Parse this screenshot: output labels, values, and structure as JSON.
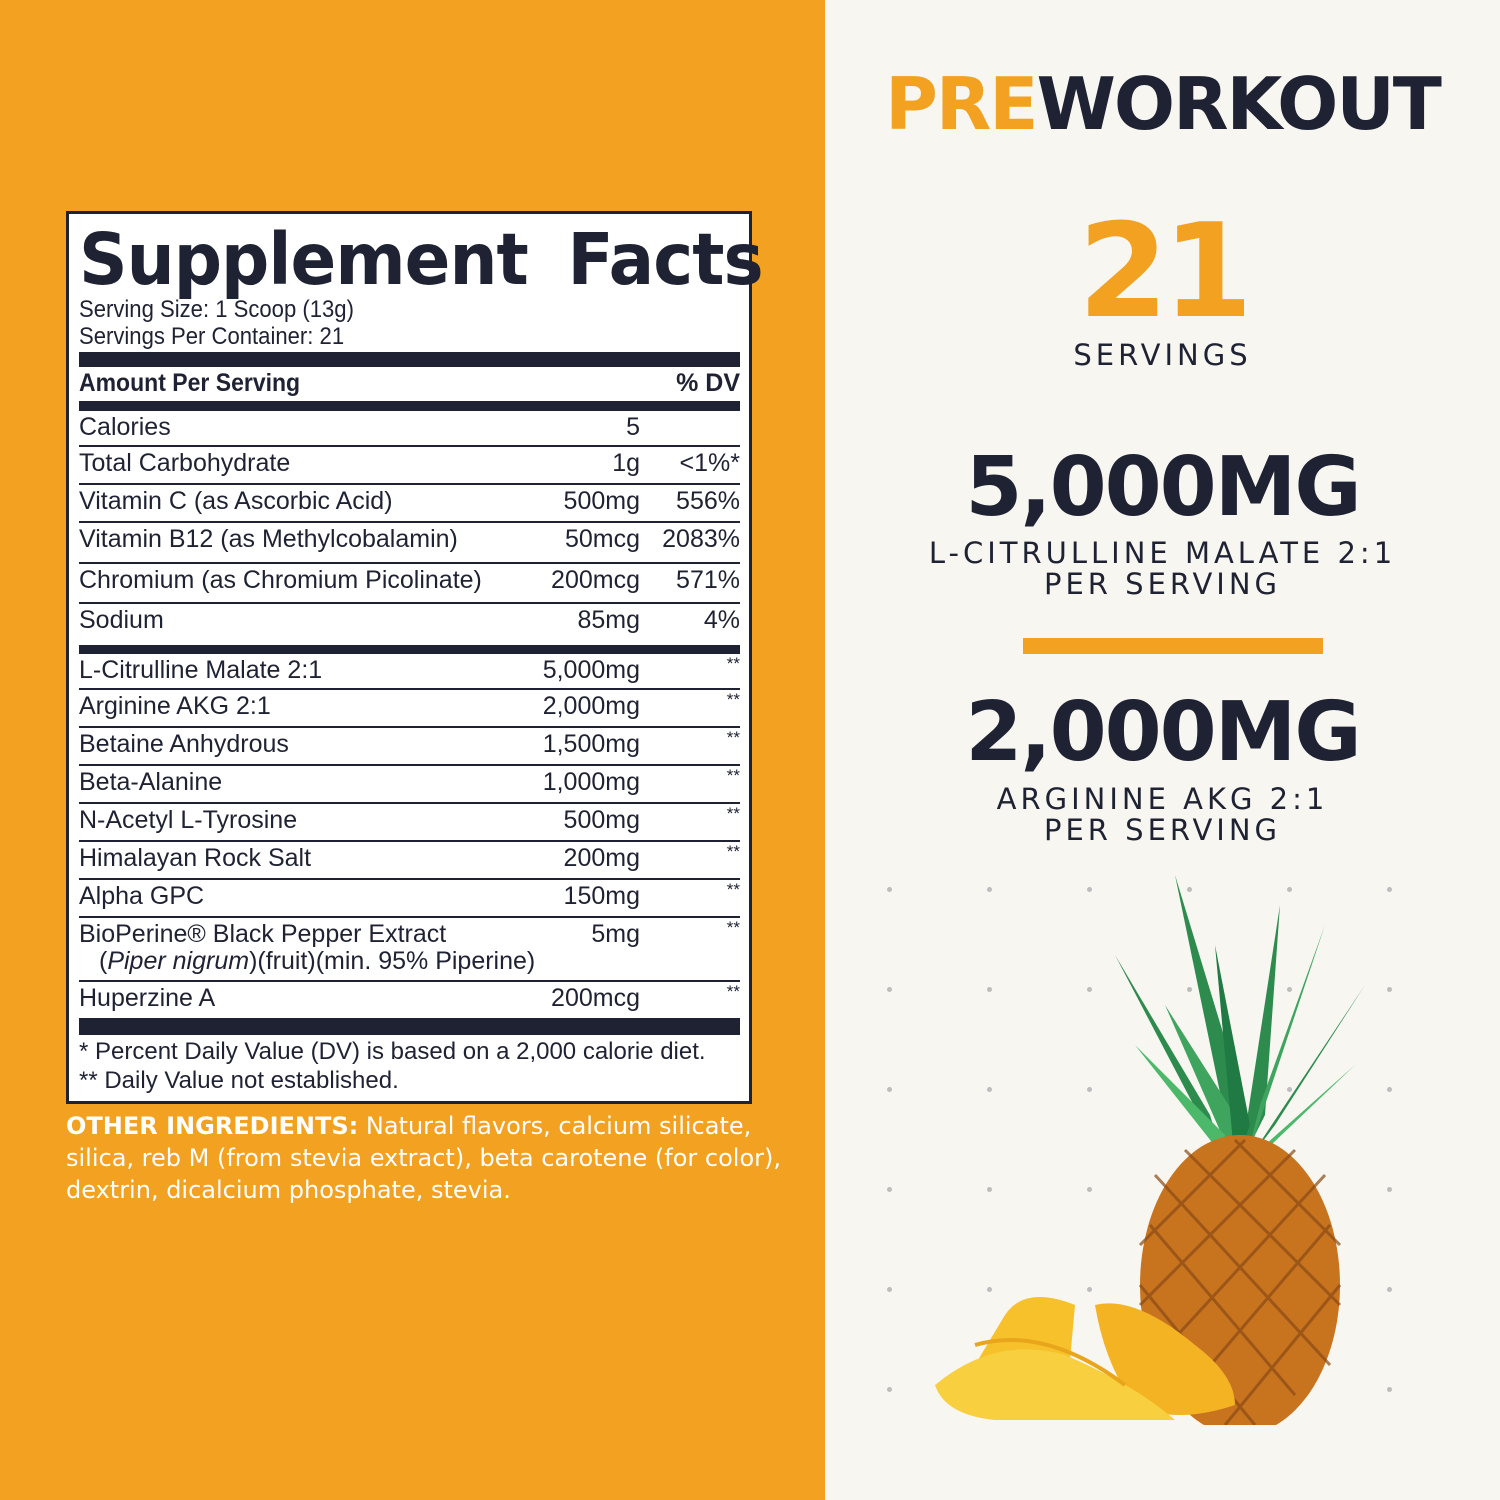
{
  "facts": {
    "title": "Supplement Facts",
    "serving_size": "Serving Size: 1 Scoop (13g)",
    "servings_per_container": "Servings Per Container: 21",
    "header_amount": "Amount Per Serving",
    "header_dv": "% DV",
    "rows": [
      {
        "name": "Calories",
        "amount": "5",
        "dv": ""
      },
      {
        "name": "Total Carbohydrate",
        "amount": "1g",
        "dv": "<1%*"
      },
      {
        "name": "Vitamin C (as Ascorbic Acid)",
        "amount": "500mg",
        "dv": "556%"
      },
      {
        "name": "Vitamin B12 (as Methylcobalamin)",
        "amount": "50mcg",
        "dv": "2083%"
      },
      {
        "name": "Chromium (as Chromium Picolinate)",
        "amount": "200mcg",
        "dv": "571%"
      },
      {
        "name": "Sodium",
        "amount": "85mg",
        "dv": "4%"
      },
      {
        "name": "L-Citrulline Malate 2:1",
        "amount": "5,000mg",
        "dv": "**"
      },
      {
        "name": "Arginine AKG 2:1",
        "amount": "2,000mg",
        "dv": "**"
      },
      {
        "name": "Betaine Anhydrous",
        "amount": "1,500mg",
        "dv": "**"
      },
      {
        "name": "Beta-Alanine",
        "amount": "1,000mg",
        "dv": "**"
      },
      {
        "name": "N-Acetyl L-Tyrosine",
        "amount": "500mg",
        "dv": "**"
      },
      {
        "name": "Himalayan Rock Salt",
        "amount": "200mg",
        "dv": "**"
      },
      {
        "name": "Alpha GPC",
        "amount": "150mg",
        "dv": "**"
      },
      {
        "name": "BioPerine® Black Pepper Extract",
        "sub_italic": "Piper nigrum",
        "sub_rest": ")(fruit)(min. 95% Piperine)",
        "amount": "5mg",
        "dv": "**"
      },
      {
        "name": "Huperzine A",
        "amount": "200mcg",
        "dv": "**"
      }
    ],
    "footnote1": "* Percent Daily Value (DV) is based on a 2,000 calorie diet.",
    "footnote2": "** Daily Value not established."
  },
  "other_ingredients": {
    "label": "OTHER INGREDIENTS:",
    "text": " Natural flavors, calcium silicate, silica, reb M (from stevia extract), beta carotene (for color), dextrin, dicalcium phosphate, stevia."
  },
  "right": {
    "brand_pre": "PRE",
    "brand_workout": "WORKOUT",
    "servings_number": "21",
    "servings_label": "SERVINGS",
    "stat1_value": "5,000MG",
    "stat1_line1": "L-CITRULLINE MALATE 2:1",
    "stat1_line2": "PER SERVING",
    "stat2_value": "2,000MG",
    "stat2_line1": "ARGININE AKG 2:1",
    "stat2_line2": "PER SERVING"
  },
  "colors": {
    "orange": "#f2a120",
    "navy": "#1f2233",
    "cream": "#f7f6f1"
  },
  "illustration": "pineapple-with-mango-slices"
}
